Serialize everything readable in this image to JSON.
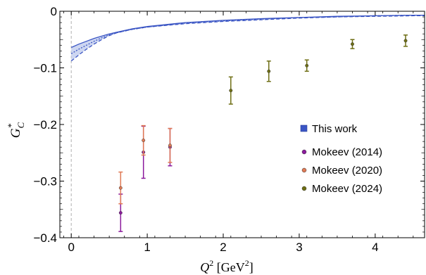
{
  "chart_data": {
    "type": "scatter",
    "xlabel": "Q^2 [GeV^2]",
    "xlabel_parts": {
      "base": "Q",
      "exp": "2",
      "unit_open": " [GeV",
      "unit_exp": "2",
      "unit_close": "]"
    },
    "ylabel": "G_C^*",
    "ylabel_parts": {
      "base": "G",
      "sup": "*",
      "sub": "C"
    },
    "xlim": [
      -0.15,
      4.65
    ],
    "ylim": [
      -0.4,
      0.0
    ],
    "x_ticks": [
      0,
      1,
      2,
      3,
      4
    ],
    "x_tick_labels": [
      "0",
      "1",
      "2",
      "3",
      "4"
    ],
    "y_ticks": [
      0,
      -0.1,
      -0.2,
      -0.3,
      -0.4
    ],
    "y_tick_labels": [
      "0",
      "−0.1",
      "−0.2",
      "−0.3",
      "−0.4"
    ],
    "legend_position": "right-center",
    "band": {
      "name": "This work",
      "color": "#3a55c4",
      "fill": "#c8d2f0",
      "x": [
        0,
        0.1,
        0.2,
        0.3,
        0.4,
        0.5,
        0.6,
        0.8,
        1.0,
        1.5,
        2.0,
        2.5,
        3.0,
        3.5,
        4.0,
        4.5,
        4.65
      ],
      "upper": [
        -0.064,
        -0.058,
        -0.053,
        -0.048,
        -0.044,
        -0.04,
        -0.037,
        -0.031,
        -0.027,
        -0.02,
        -0.016,
        -0.013,
        -0.011,
        -0.009,
        -0.008,
        -0.007,
        -0.007
      ],
      "center": [
        -0.075,
        -0.067,
        -0.06,
        -0.053,
        -0.047,
        -0.042,
        -0.038,
        -0.032,
        -0.028,
        -0.021,
        -0.017,
        -0.014,
        -0.011,
        -0.01,
        -0.008,
        -0.007,
        -0.007
      ],
      "lower": [
        -0.088,
        -0.077,
        -0.067,
        -0.058,
        -0.05,
        -0.043,
        -0.038,
        -0.032,
        -0.028,
        -0.022,
        -0.018,
        -0.015,
        -0.012,
        -0.01,
        -0.009,
        -0.008,
        -0.008
      ]
    },
    "series": [
      {
        "name": "Mokeev (2014)",
        "color": "#8b1a9c",
        "points": [
          {
            "x": 0.65,
            "y": -0.356,
            "err": 0.033
          },
          {
            "x": 0.95,
            "y": -0.249,
            "err": 0.046
          },
          {
            "x": 1.3,
            "y": -0.24,
            "err": 0.033
          }
        ]
      },
      {
        "name": "Mokeev (2020)",
        "color": "#e07a55",
        "points": [
          {
            "x": 0.65,
            "y": -0.312,
            "err": 0.028
          },
          {
            "x": 0.95,
            "y": -0.228,
            "err": 0.026
          },
          {
            "x": 1.3,
            "y": -0.237,
            "err": 0.03
          }
        ]
      },
      {
        "name": "Mokeev (2024)",
        "color": "#6e6e14",
        "points": [
          {
            "x": 2.1,
            "y": -0.14,
            "err": 0.024
          },
          {
            "x": 2.6,
            "y": -0.106,
            "err": 0.018
          },
          {
            "x": 3.1,
            "y": -0.096,
            "err": 0.01
          },
          {
            "x": 3.7,
            "y": -0.058,
            "err": 0.008
          },
          {
            "x": 4.4,
            "y": -0.052,
            "err": 0.01
          }
        ]
      }
    ],
    "legend": [
      {
        "label": "This work",
        "color": "#3a55c4",
        "marker": "square"
      },
      {
        "label": "Mokeev (2014)",
        "color": "#8b1a9c",
        "marker": "circle"
      },
      {
        "label": "Mokeev (2020)",
        "color": "#e07a55",
        "marker": "circle"
      },
      {
        "label": "Mokeev (2024)",
        "color": "#6e6e14",
        "marker": "circle"
      }
    ]
  }
}
